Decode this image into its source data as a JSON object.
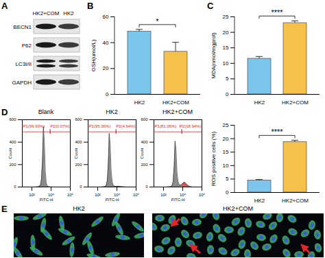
{
  "chart_data": [
    {
      "panel_label": "B",
      "type": "bar",
      "y_label": "GSH(umol/L)",
      "categories": [
        "HK2",
        "HK2+COM"
      ],
      "values": [
        48.5,
        33
      ],
      "errors": [
        1.5,
        7
      ],
      "colors": [
        "#7cc6ee",
        "#f7c04a"
      ],
      "ylim": [
        0,
        60
      ],
      "yticks": [
        0,
        20,
        40,
        60
      ],
      "significance": "*"
    },
    {
      "panel_label": "C",
      "type": "bar",
      "y_label": "MDA(nmol/mgprot)",
      "categories": [
        "HK2",
        "HK2+COM"
      ],
      "values": [
        11.5,
        23
      ],
      "errors": [
        0.6,
        0.6
      ],
      "colors": [
        "#7cc6ee",
        "#f7c04a"
      ],
      "ylim": [
        0,
        25
      ],
      "yticks": [
        0,
        5,
        10,
        15,
        20,
        25
      ],
      "significance": "****"
    },
    {
      "panel_label": "D",
      "type": "histogram",
      "title": "Blank",
      "x_label": "FITC-H",
      "y_label": "Count",
      "log": "x",
      "x": [
        100,
        200,
        400,
        600,
        800,
        1000,
        1300,
        1600,
        2000,
        2500,
        3200,
        4000,
        5000,
        6300,
        8000,
        10000,
        13000,
        16000,
        20000,
        30000,
        50000,
        100000
      ],
      "values": [
        0,
        0,
        2,
        6,
        20,
        70,
        260,
        540,
        400,
        140,
        35,
        10,
        4,
        2,
        1,
        1,
        0,
        0,
        0,
        0,
        0,
        0
      ],
      "gates": [
        {
          "label": "P1(99.93%)",
          "range": [
            10,
            8000
          ],
          "color": "#8a8a8a"
        },
        {
          "label": "P2(0.07%)",
          "range": [
            8000,
            1000000
          ],
          "color": "#d9534f"
        }
      ],
      "xlim": [
        10,
        1000000
      ],
      "xticks": [
        {
          "value": 100,
          "label": "10²"
        },
        {
          "value": 10000,
          "label": "10⁴"
        },
        {
          "value": 1000000,
          "label": "10⁶"
        }
      ],
      "ylim": [
        0,
        600
      ],
      "yticks": [
        0,
        200,
        400,
        600
      ]
    },
    {
      "type": "histogram",
      "title": "HK2",
      "x_label": "FITC-H",
      "y_label": "Count",
      "log": "x",
      "x": [
        100,
        200,
        400,
        600,
        800,
        1000,
        1300,
        1600,
        2000,
        2500,
        3200,
        4000,
        5000,
        6300,
        8000,
        10000,
        13000,
        16000,
        20000,
        30000,
        50000,
        100000
      ],
      "values": [
        0,
        0,
        2,
        5,
        18,
        60,
        230,
        480,
        380,
        150,
        50,
        18,
        9,
        6,
        5,
        6,
        7,
        6,
        5,
        3,
        1,
        0
      ],
      "gates": [
        {
          "label": "P1(95.36%)",
          "range": [
            10,
            8000
          ],
          "color": "#8a8a8a"
        },
        {
          "label": "P2(4.64%)",
          "range": [
            8000,
            1000000
          ],
          "color": "#d9534f"
        }
      ],
      "xlim": [
        10,
        1000000
      ],
      "xticks": [
        {
          "value": 100,
          "label": "10²"
        },
        {
          "value": 10000,
          "label": "10⁴"
        },
        {
          "value": 1000000,
          "label": "10⁶"
        }
      ],
      "ylim": [
        0,
        600
      ],
      "yticks": [
        0,
        200,
        400,
        600
      ]
    },
    {
      "type": "histogram",
      "title": "HK2+COM",
      "x_label": "FITC-H",
      "y_label": "Count",
      "log": "x",
      "x": [
        100,
        200,
        400,
        600,
        800,
        1000,
        1300,
        1600,
        2000,
        2500,
        3200,
        4000,
        5000,
        6300,
        8000,
        10000,
        13000,
        16000,
        20000,
        30000,
        50000,
        100000
      ],
      "values": [
        0,
        0,
        2,
        4,
        15,
        50,
        190,
        410,
        330,
        140,
        55,
        25,
        18,
        18,
        20,
        30,
        40,
        42,
        35,
        18,
        5,
        0
      ],
      "gates": [
        {
          "label": "P1(81.06%)",
          "range": [
            10,
            8000
          ],
          "color": "#8a8a8a"
        },
        {
          "label": "P2(18.94%)",
          "range": [
            8000,
            1000000
          ],
          "color": "#d9534f"
        }
      ],
      "xlim": [
        10,
        1000000
      ],
      "xticks": [
        {
          "value": 100,
          "label": "10²"
        },
        {
          "value": 10000,
          "label": "10⁴"
        },
        {
          "value": 1000000,
          "label": "10⁶"
        }
      ],
      "ylim": [
        0,
        600
      ],
      "yticks": [
        0,
        200,
        400,
        600
      ]
    },
    {
      "type": "bar",
      "y_label": "ROS positive cells (%)",
      "categories": [
        "HK2",
        "HK2+COM"
      ],
      "values": [
        4.5,
        18.8
      ],
      "errors": [
        0.2,
        0.5
      ],
      "colors": [
        "#7cc6ee",
        "#f7c04a"
      ],
      "ylim": [
        0,
        25
      ],
      "yticks": [
        0,
        5,
        10,
        15,
        20,
        25
      ],
      "significance": "****"
    }
  ],
  "blot": {
    "panel_label": "A",
    "lanes": [
      "HK2+COM",
      "HK2"
    ],
    "rows": [
      "BECN1",
      "P62",
      "LC3I/II",
      "GAPDH"
    ]
  },
  "images": {
    "panel_label": "E",
    "labels": [
      "HK2",
      "HK2+COM"
    ]
  }
}
